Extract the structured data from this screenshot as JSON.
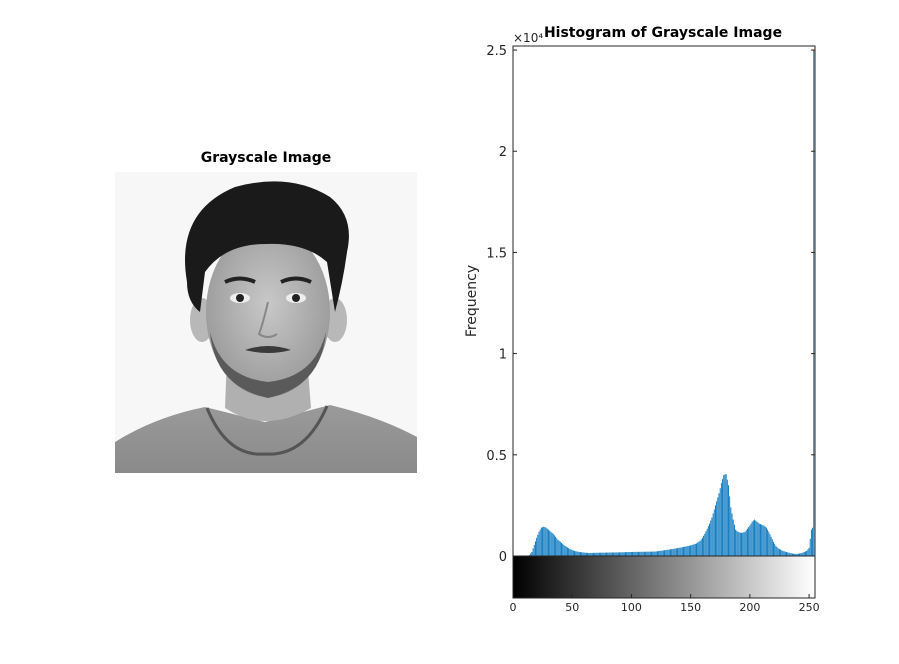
{
  "left_panel": {
    "title": "Grayscale Image"
  },
  "chart_data": {
    "type": "bar",
    "title": "Histogram of Grayscale Image",
    "ylabel": "Frequency",
    "xlabel": "",
    "y_exponent_label": "×10⁴",
    "bar_color": "#0072BD",
    "x": [
      0,
      4,
      8,
      12,
      14,
      16,
      18,
      20,
      22,
      24,
      26,
      28,
      30,
      32,
      34,
      36,
      38,
      40,
      44,
      48,
      52,
      56,
      60,
      64,
      70,
      80,
      90,
      100,
      110,
      120,
      125,
      130,
      135,
      140,
      145,
      150,
      155,
      158,
      160,
      162,
      164,
      166,
      168,
      170,
      172,
      174,
      176,
      178,
      180,
      182,
      184,
      186,
      188,
      190,
      192,
      194,
      196,
      198,
      200,
      202,
      204,
      206,
      208,
      210,
      212,
      214,
      216,
      218,
      220,
      222,
      224,
      228,
      232,
      236,
      240,
      244,
      248,
      250,
      252,
      253,
      254,
      255
    ],
    "y": [
      0,
      0,
      0,
      0,
      50,
      200,
      550,
      900,
      1200,
      1400,
      1450,
      1400,
      1300,
      1200,
      1100,
      950,
      800,
      700,
      500,
      350,
      250,
      200,
      170,
      150,
      160,
      170,
      180,
      200,
      210,
      220,
      260,
      300,
      350,
      400,
      460,
      520,
      620,
      750,
      900,
      1100,
      1350,
      1600,
      1900,
      2300,
      2700,
      3100,
      3600,
      4000,
      4050,
      3500,
      2400,
      1800,
      1300,
      1200,
      1150,
      1150,
      1200,
      1350,
      1500,
      1700,
      1800,
      1700,
      1600,
      1550,
      1500,
      1400,
      1200,
      950,
      700,
      500,
      380,
      250,
      180,
      120,
      100,
      150,
      250,
      400,
      1300,
      1400,
      25000,
      25000
    ],
    "xlim": [
      0,
      255
    ],
    "ylim": [
      0,
      25200
    ],
    "x_ticks": [
      0,
      50,
      100,
      150,
      200,
      250
    ],
    "y_ticks": [
      0,
      5000,
      10000,
      15000,
      20000,
      25000
    ],
    "y_tick_labels": [
      "0",
      "0.5",
      "1",
      "1.5",
      "2",
      "2.5"
    ],
    "colorbar": "grayscale 0-255"
  }
}
